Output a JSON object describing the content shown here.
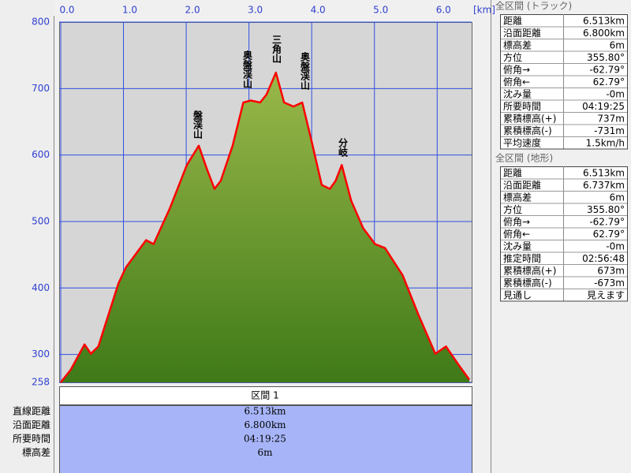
{
  "chart_data": {
    "type": "area",
    "xlabel": "[km]",
    "x": [
      0,
      0.16,
      0.38,
      0.48,
      0.6,
      0.92,
      1.04,
      1.36,
      1.48,
      1.74,
      2.01,
      2.2,
      2.33,
      2.45,
      2.55,
      2.74,
      2.91,
      3.03,
      3.18,
      3.28,
      3.43,
      3.56,
      3.71,
      3.85,
      4.0,
      4.16,
      4.29,
      4.38,
      4.48,
      4.63,
      4.82,
      5.01,
      5.17,
      5.45,
      5.7,
      5.97,
      6.14,
      6.33,
      6.49,
      6.513
    ],
    "values": [
      258,
      277,
      315,
      301,
      312,
      407,
      431,
      472,
      466,
      520,
      585,
      614,
      579,
      549,
      561,
      614,
      679,
      682,
      679,
      691,
      724,
      679,
      673,
      679,
      620,
      555,
      549,
      561,
      585,
      531,
      490,
      466,
      460,
      419,
      360,
      301,
      312,
      286,
      265,
      262
    ],
    "color": "#ff0000",
    "fill_color": "#6f9a2e",
    "grid_color": "#2f4fe0",
    "xlim": [
      0,
      6.55
    ],
    "ylim": [
      258,
      800
    ],
    "xticks": [
      {
        "value": 0,
        "label": "0.0"
      },
      {
        "value": 1,
        "label": "1.0"
      },
      {
        "value": 2,
        "label": "2.0"
      },
      {
        "value": 3,
        "label": "3.0"
      },
      {
        "value": 4,
        "label": "4.0"
      },
      {
        "value": 5,
        "label": "5.0"
      },
      {
        "value": 6,
        "label": "6.0"
      }
    ],
    "yticks": [
      258,
      300,
      400,
      500,
      600,
      700,
      800
    ],
    "grid": true,
    "annotations": [
      "盤渓山",
      "奥盤渓山",
      "三角山",
      "奥盤渓山",
      "分岐"
    ]
  },
  "section": {
    "header": "区間 1",
    "rows": [
      [
        "直線距離",
        "6.513km"
      ],
      [
        "沿面距離",
        "6.800km"
      ],
      [
        "所要時間",
        "04:19:25"
      ],
      [
        "標高差",
        "6m"
      ]
    ]
  },
  "track_panel": {
    "title": "全区間 (トラック)",
    "rows": [
      [
        "距離",
        "6.513km"
      ],
      [
        "沿面距離",
        "6.800km"
      ],
      [
        "標高差",
        "6m"
      ],
      [
        "方位",
        "355.80°"
      ],
      [
        "俯角→",
        "-62.79°"
      ],
      [
        "俯角←",
        "62.79°"
      ],
      [
        "沈み量",
        "-0m"
      ],
      [
        "所要時間",
        "04:19:25"
      ],
      [
        "累積標高(+)",
        "737m"
      ],
      [
        "累積標高(-)",
        "-731m"
      ],
      [
        "平均速度",
        "1.5km/h"
      ]
    ]
  },
  "terrain_panel": {
    "title": "全区間 (地形)",
    "rows": [
      [
        "距離",
        "6.513km"
      ],
      [
        "沿面距離",
        "6.737km"
      ],
      [
        "標高差",
        "6m"
      ],
      [
        "方位",
        "355.80°"
      ],
      [
        "俯角→",
        "-62.79°"
      ],
      [
        "俯角←",
        "62.79°"
      ],
      [
        "沈み量",
        "-0m"
      ],
      [
        "推定時間",
        "02:56:48"
      ],
      [
        "累積標高(+)",
        "673m"
      ],
      [
        "累積標高(-)",
        "-673m"
      ],
      [
        "見通し",
        "見えます"
      ]
    ]
  }
}
